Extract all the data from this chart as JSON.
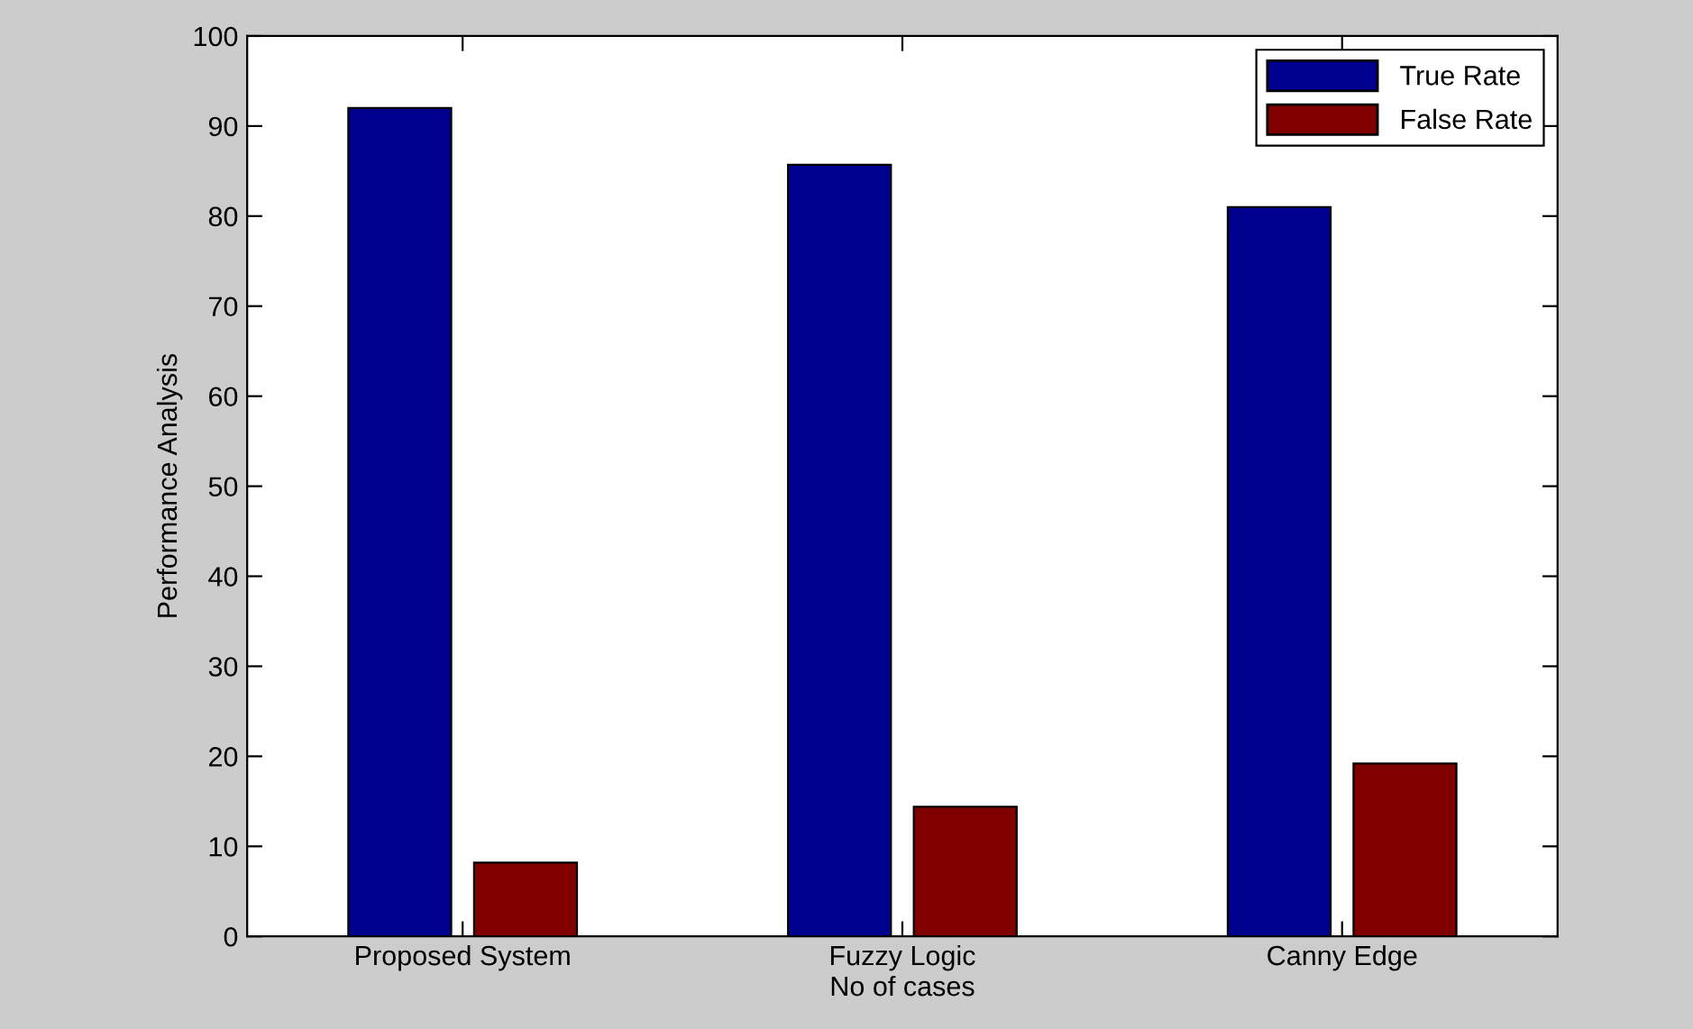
{
  "chart_data": {
    "type": "bar",
    "xlabel": "No of cases",
    "ylabel": "Performance Analysis",
    "categories": [
      "Proposed System",
      "Fuzzy Logic",
      "Canny Edge"
    ],
    "series": [
      {
        "name": "True Rate",
        "color": "#00008f",
        "values": [
          92.0,
          85.7,
          81.0
        ]
      },
      {
        "name": "False Rate",
        "color": "#800000",
        "values": [
          8.2,
          14.4,
          19.2
        ]
      }
    ],
    "ylim": [
      0,
      100
    ],
    "yticks": [
      0,
      10,
      20,
      30,
      40,
      50,
      60,
      70,
      80,
      90,
      100
    ],
    "grid": false,
    "legend": "top right"
  }
}
